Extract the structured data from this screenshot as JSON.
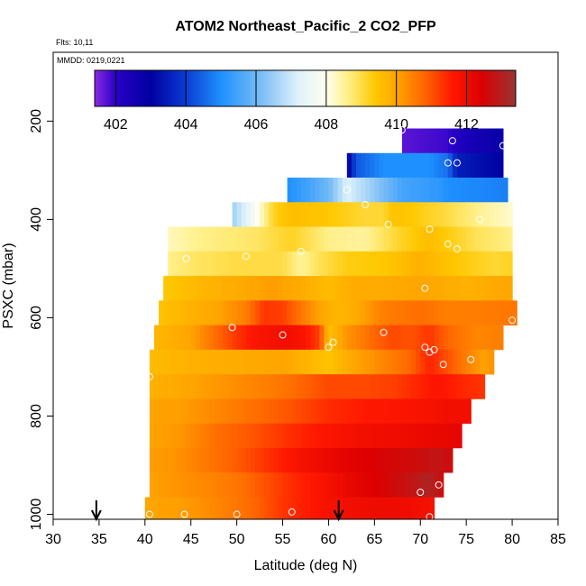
{
  "chart_data": {
    "type": "heatmap",
    "title": "ATOM2 Northeast_Pacific_2 CO2_PFP",
    "flights_label": "Flts: 10,11",
    "date_label": "MMDD: 0219,0221",
    "xlabel": "Latitude (deg N)",
    "ylabel": "PSXC (mbar)",
    "xlim": [
      30,
      85
    ],
    "ylim_reversed": [
      1010,
      60
    ],
    "x_ticks": [
      "30",
      "35",
      "40",
      "45",
      "50",
      "55",
      "60",
      "65",
      "70",
      "75",
      "80",
      "85"
    ],
    "x_tick_values": [
      30,
      35,
      40,
      45,
      50,
      55,
      60,
      65,
      70,
      75,
      80,
      85
    ],
    "y_ticks": [
      "200",
      "400",
      "600",
      "800",
      "1000"
    ],
    "y_tick_values": [
      200,
      400,
      600,
      800,
      1000
    ],
    "colorbar": {
      "min": 401.4,
      "max": 413.4,
      "tick_labels": [
        "402",
        "404",
        "406",
        "408",
        "410",
        "412"
      ],
      "tick_values": [
        402,
        404,
        406,
        408,
        410,
        412
      ],
      "stops": [
        {
          "v": 401.4,
          "c": "#8a2be2"
        },
        {
          "v": 402.0,
          "c": "#2a00c8"
        },
        {
          "v": 403.0,
          "c": "#0000a0"
        },
        {
          "v": 404.0,
          "c": "#0a3cd2"
        },
        {
          "v": 405.0,
          "c": "#1e90ff"
        },
        {
          "v": 406.2,
          "c": "#7fc0f5"
        },
        {
          "v": 407.2,
          "c": "#dff2fc"
        },
        {
          "v": 408.0,
          "c": "#fffff0"
        },
        {
          "v": 408.6,
          "c": "#fff08a"
        },
        {
          "v": 409.4,
          "c": "#ffc800"
        },
        {
          "v": 410.0,
          "c": "#ffa500"
        },
        {
          "v": 410.8,
          "c": "#ff6600"
        },
        {
          "v": 411.6,
          "c": "#ff1800"
        },
        {
          "v": 412.4,
          "c": "#dd0000"
        },
        {
          "v": 413.4,
          "c": "#993333"
        }
      ]
    },
    "arrow_latitudes": [
      34.7,
      61.1
    ],
    "layers": [
      {
        "p": [
          215,
          265
        ],
        "x0": 68,
        "x1": 79,
        "v": [
          [
            68,
            401.7
          ],
          [
            73,
            401.9
          ],
          [
            75,
            402.4
          ],
          [
            79,
            402.8
          ]
        ]
      },
      {
        "p": [
          265,
          315
        ],
        "x0": 62,
        "x1": 79,
        "v": [
          [
            62,
            402.8
          ],
          [
            63,
            404.3
          ],
          [
            66,
            405
          ],
          [
            71,
            405
          ],
          [
            73,
            404.6
          ],
          [
            74,
            403.5
          ],
          [
            79,
            403
          ]
        ]
      },
      {
        "p": [
          315,
          365
        ],
        "x0": 55.5,
        "x1": 79.5,
        "v": [
          [
            55.5,
            405
          ],
          [
            58,
            405.5
          ],
          [
            60,
            406
          ],
          [
            62,
            407.2
          ],
          [
            65,
            406.4
          ],
          [
            68,
            405.5
          ],
          [
            72,
            405.2
          ],
          [
            73,
            405
          ],
          [
            79.5,
            404.8
          ]
        ]
      },
      {
        "p": [
          365,
          415
        ],
        "x0": 49.5,
        "x1": 80,
        "v": [
          [
            49.5,
            406.5
          ],
          [
            52,
            407.8
          ],
          [
            54,
            409.2
          ],
          [
            56,
            409.6
          ],
          [
            60,
            409.4
          ],
          [
            64,
            409.1
          ],
          [
            66,
            409.1
          ],
          [
            67,
            409.5
          ],
          [
            69,
            409.4
          ],
          [
            73,
            409
          ],
          [
            77,
            408.5
          ],
          [
            80,
            408.2
          ]
        ]
      },
      {
        "p": [
          415,
          465
        ],
        "x0": 42.5,
        "x1": 80,
        "v": [
          [
            42.5,
            408.3
          ],
          [
            46,
            408.6
          ],
          [
            52,
            408.8
          ],
          [
            56,
            409.2
          ],
          [
            60,
            408.6
          ],
          [
            64,
            408.5
          ],
          [
            68,
            409.2
          ],
          [
            71,
            409.6
          ],
          [
            76,
            408.9
          ],
          [
            80,
            408.6
          ]
        ]
      },
      {
        "p": [
          465,
          515
        ],
        "x0": 42.5,
        "x1": 80,
        "v": [
          [
            42.5,
            408.6
          ],
          [
            45,
            408.8
          ],
          [
            50,
            409
          ],
          [
            55,
            409
          ],
          [
            57,
            408.5
          ],
          [
            59,
            408.9
          ],
          [
            62,
            409.3
          ],
          [
            66,
            409.4
          ],
          [
            70,
            409.8
          ],
          [
            74,
            409.4
          ],
          [
            78,
            409.1
          ],
          [
            80,
            409.2
          ]
        ]
      },
      {
        "p": [
          515,
          565
        ],
        "x0": 42,
        "x1": 80,
        "v": [
          [
            42,
            409.4
          ],
          [
            46,
            409.7
          ],
          [
            50,
            409.9
          ],
          [
            54,
            410.1
          ],
          [
            57,
            409.9
          ],
          [
            60,
            409.6
          ],
          [
            63,
            409.9
          ],
          [
            66,
            409.9
          ],
          [
            70,
            410
          ],
          [
            75,
            409.8
          ],
          [
            80,
            410
          ]
        ]
      },
      {
        "p": [
          565,
          615
        ],
        "x0": 41.5,
        "x1": 80.5,
        "v": [
          [
            41.5,
            409.5
          ],
          [
            45,
            409.8
          ],
          [
            48,
            410
          ],
          [
            51,
            410.5
          ],
          [
            53,
            411.3
          ],
          [
            55,
            411.2
          ],
          [
            57,
            410.6
          ],
          [
            59,
            410
          ],
          [
            61,
            409.7
          ],
          [
            63,
            409.9
          ],
          [
            66,
            410.5
          ],
          [
            70,
            410.7
          ],
          [
            73,
            410.5
          ],
          [
            76,
            410.5
          ],
          [
            80.5,
            410.6
          ]
        ]
      },
      {
        "p": [
          615,
          665
        ],
        "x0": 41,
        "x1": 79,
        "v": [
          [
            41,
            409.7
          ],
          [
            45,
            410
          ],
          [
            48,
            410.8
          ],
          [
            50,
            411.3
          ],
          [
            52,
            411.7
          ],
          [
            55,
            411.9
          ],
          [
            57,
            411.8
          ],
          [
            59,
            411.2
          ],
          [
            60,
            409.5
          ],
          [
            62,
            410.2
          ],
          [
            65,
            410.8
          ],
          [
            67,
            411.1
          ],
          [
            69,
            411
          ],
          [
            71,
            411.3
          ],
          [
            73,
            410.8
          ],
          [
            76,
            410.4
          ],
          [
            79,
            410.5
          ]
        ]
      },
      {
        "p": [
          665,
          715
        ],
        "x0": 40.5,
        "x1": 78,
        "v": [
          [
            40.5,
            409.6
          ],
          [
            45,
            409.8
          ],
          [
            50,
            409.9
          ],
          [
            55,
            410
          ],
          [
            60,
            409.5
          ],
          [
            63,
            410
          ],
          [
            66,
            410.4
          ],
          [
            69,
            410.8
          ],
          [
            71,
            411.5
          ],
          [
            73,
            411
          ],
          [
            75,
            410.5
          ],
          [
            77,
            410
          ],
          [
            78,
            410.3
          ]
        ]
      },
      {
        "p": [
          715,
          765
        ],
        "x0": 40.5,
        "x1": 77,
        "v": [
          [
            40.5,
            409.8
          ],
          [
            45,
            410
          ],
          [
            50,
            410.3
          ],
          [
            55,
            410.6
          ],
          [
            58,
            410.9
          ],
          [
            60,
            411.1
          ],
          [
            64,
            411.1
          ],
          [
            67,
            411.2
          ],
          [
            70,
            411.5
          ],
          [
            72,
            411.7
          ],
          [
            74,
            411.5
          ],
          [
            77,
            411.3
          ]
        ]
      },
      {
        "p": [
          765,
          815
        ],
        "x0": 40.5,
        "x1": 75.5,
        "v": [
          [
            40.5,
            410
          ],
          [
            44,
            410.1
          ],
          [
            48,
            410.4
          ],
          [
            52,
            410.7
          ],
          [
            56,
            411
          ],
          [
            60,
            411.4
          ],
          [
            64,
            411.6
          ],
          [
            68,
            411.7
          ],
          [
            71,
            411.8
          ],
          [
            73,
            411.9
          ],
          [
            75.5,
            411.9
          ]
        ]
      },
      {
        "p": [
          815,
          865
        ],
        "x0": 40.5,
        "x1": 74.5,
        "v": [
          [
            40.5,
            410
          ],
          [
            44,
            410.2
          ],
          [
            48,
            410.7
          ],
          [
            52,
            411
          ],
          [
            56,
            411.4
          ],
          [
            60,
            411.7
          ],
          [
            64,
            411.9
          ],
          [
            68,
            412
          ],
          [
            71,
            412.1
          ],
          [
            74.5,
            412.2
          ]
        ]
      },
      {
        "p": [
          865,
          915
        ],
        "x0": 40.5,
        "x1": 73.5,
        "v": [
          [
            40.5,
            410.1
          ],
          [
            43,
            410.2
          ],
          [
            47,
            410.6
          ],
          [
            50,
            410.9
          ],
          [
            53,
            411.3
          ],
          [
            57,
            411.8
          ],
          [
            60,
            412.1
          ],
          [
            63,
            412.3
          ],
          [
            66,
            412.5
          ],
          [
            69,
            412.6
          ],
          [
            72,
            412.8
          ],
          [
            73.5,
            412.6
          ]
        ]
      },
      {
        "p": [
          915,
          965
        ],
        "x0": 40.5,
        "x1": 72.5,
        "v": [
          [
            40.5,
            410
          ],
          [
            43,
            410.2
          ],
          [
            47,
            410.4
          ],
          [
            50,
            410.6
          ],
          [
            53,
            411
          ],
          [
            56,
            411.4
          ],
          [
            59,
            411.7
          ],
          [
            62,
            412.1
          ],
          [
            66,
            412.5
          ],
          [
            69,
            412.8
          ],
          [
            71,
            413.1
          ],
          [
            72.5,
            412.6
          ]
        ]
      },
      {
        "p": [
          965,
          1010
        ],
        "x0": 40,
        "x1": 71.5,
        "v": [
          [
            40,
            410
          ],
          [
            44,
            410.1
          ],
          [
            48,
            410.4
          ],
          [
            52,
            410.8
          ],
          [
            55,
            411.3
          ],
          [
            58,
            411.6
          ],
          [
            60,
            411.8
          ],
          [
            62,
            411.9
          ],
          [
            65,
            412
          ],
          [
            68,
            412
          ],
          [
            70,
            411.9
          ],
          [
            71.5,
            411.8
          ]
        ]
      }
    ],
    "sample_points": [
      [
        68,
        218
      ],
      [
        73.5,
        240
      ],
      [
        79,
        250
      ],
      [
        73,
        285
      ],
      [
        74,
        285
      ],
      [
        62,
        340
      ],
      [
        71,
        420
      ],
      [
        66.5,
        410
      ],
      [
        64,
        370
      ],
      [
        76.5,
        400
      ],
      [
        80,
        370
      ],
      [
        73,
        450
      ],
      [
        74,
        460
      ],
      [
        44.5,
        480
      ],
      [
        51,
        475
      ],
      [
        57,
        465
      ],
      [
        70.5,
        540
      ],
      [
        49.5,
        620
      ],
      [
        55,
        635
      ],
      [
        66,
        630
      ],
      [
        80,
        605
      ],
      [
        60,
        660
      ],
      [
        60.5,
        650
      ],
      [
        70.5,
        660
      ],
      [
        71,
        670
      ],
      [
        71.5,
        665
      ],
      [
        72.5,
        695
      ],
      [
        75.5,
        685
      ],
      [
        40.5,
        720
      ],
      [
        70,
        955
      ],
      [
        72,
        940
      ],
      [
        40.5,
        1000
      ],
      [
        44.3,
        1000
      ],
      [
        50,
        1000
      ],
      [
        56,
        995
      ],
      [
        71,
        1005
      ]
    ]
  }
}
